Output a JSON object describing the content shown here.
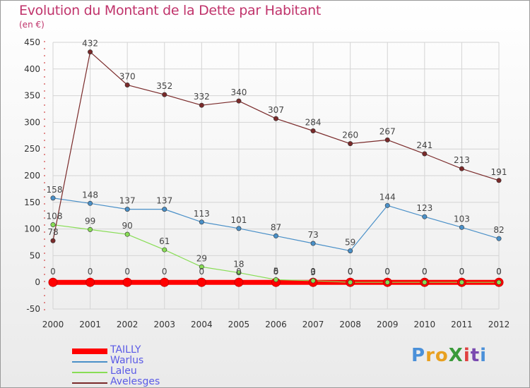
{
  "title": "Evolution du Montant de la Dette par Habitant",
  "unit": "(en €)",
  "logo": "ProXiti",
  "logo_letters": [
    "P",
    "r",
    "o",
    "X",
    "i",
    "t",
    "i"
  ],
  "logo_colors": [
    "#4a90d9",
    "#e8a020",
    "#e8a020",
    "#3a9a3a",
    "#e04040",
    "#7a4ab0",
    "#4a90d9"
  ],
  "chart_data": {
    "type": "line",
    "title": "Evolution du Montant de la Dette par Habitant",
    "ylabel": "(en €)",
    "xlabel": "",
    "x": [
      "2000",
      "2001",
      "2002",
      "2003",
      "2004",
      "2005",
      "2006",
      "2007",
      "2008",
      "2009",
      "2010",
      "2011",
      "2012"
    ],
    "ylim": [
      -50,
      450
    ],
    "yticks": [
      "-50",
      "0",
      "50",
      "100",
      "150",
      "200",
      "250",
      "300",
      "350",
      "400",
      "450"
    ],
    "grid": true,
    "legend": "bottom-left",
    "series": [
      {
        "name": "TAILLY",
        "color": "#ff0000",
        "values": [
          0,
          0,
          0,
          0,
          0,
          0,
          0,
          0,
          0,
          0,
          0,
          0,
          0
        ],
        "labels": [
          "0",
          "0",
          "0",
          "0",
          "0",
          "0",
          "0",
          "0",
          "0",
          "0",
          "0",
          "0",
          "0"
        ]
      },
      {
        "name": "Warlus",
        "color": "#4a90c8",
        "values": [
          158,
          148,
          137,
          137,
          113,
          101,
          87,
          73,
          59,
          144,
          123,
          103,
          82
        ],
        "labels": [
          "158",
          "148",
          "137",
          "137",
          "113",
          "101",
          "87",
          "73",
          "59",
          "144",
          "123",
          "103",
          "82"
        ]
      },
      {
        "name": "Laleu",
        "color": "#88dd55",
        "values": [
          108,
          99,
          90,
          61,
          29,
          18,
          5,
          3,
          0,
          0,
          0,
          0,
          0
        ],
        "labels": [
          "108",
          "99",
          "90",
          "61",
          "29",
          "18",
          "5",
          "3",
          "0",
          "0",
          "0",
          "0",
          "0"
        ]
      },
      {
        "name": "Avelesges",
        "color": "#7a2a2a",
        "values": [
          78,
          432,
          370,
          352,
          332,
          340,
          307,
          284,
          260,
          267,
          241,
          213,
          191
        ],
        "labels": [
          "78",
          "432",
          "370",
          "352",
          "332",
          "340",
          "307",
          "284",
          "260",
          "267",
          "241",
          "213",
          "191"
        ]
      }
    ],
    "extra_labels": [
      {
        "x": "2006",
        "text": "6"
      },
      {
        "x": "2007",
        "text": "0"
      },
      {
        "x": "2008",
        "text": "0"
      }
    ]
  }
}
